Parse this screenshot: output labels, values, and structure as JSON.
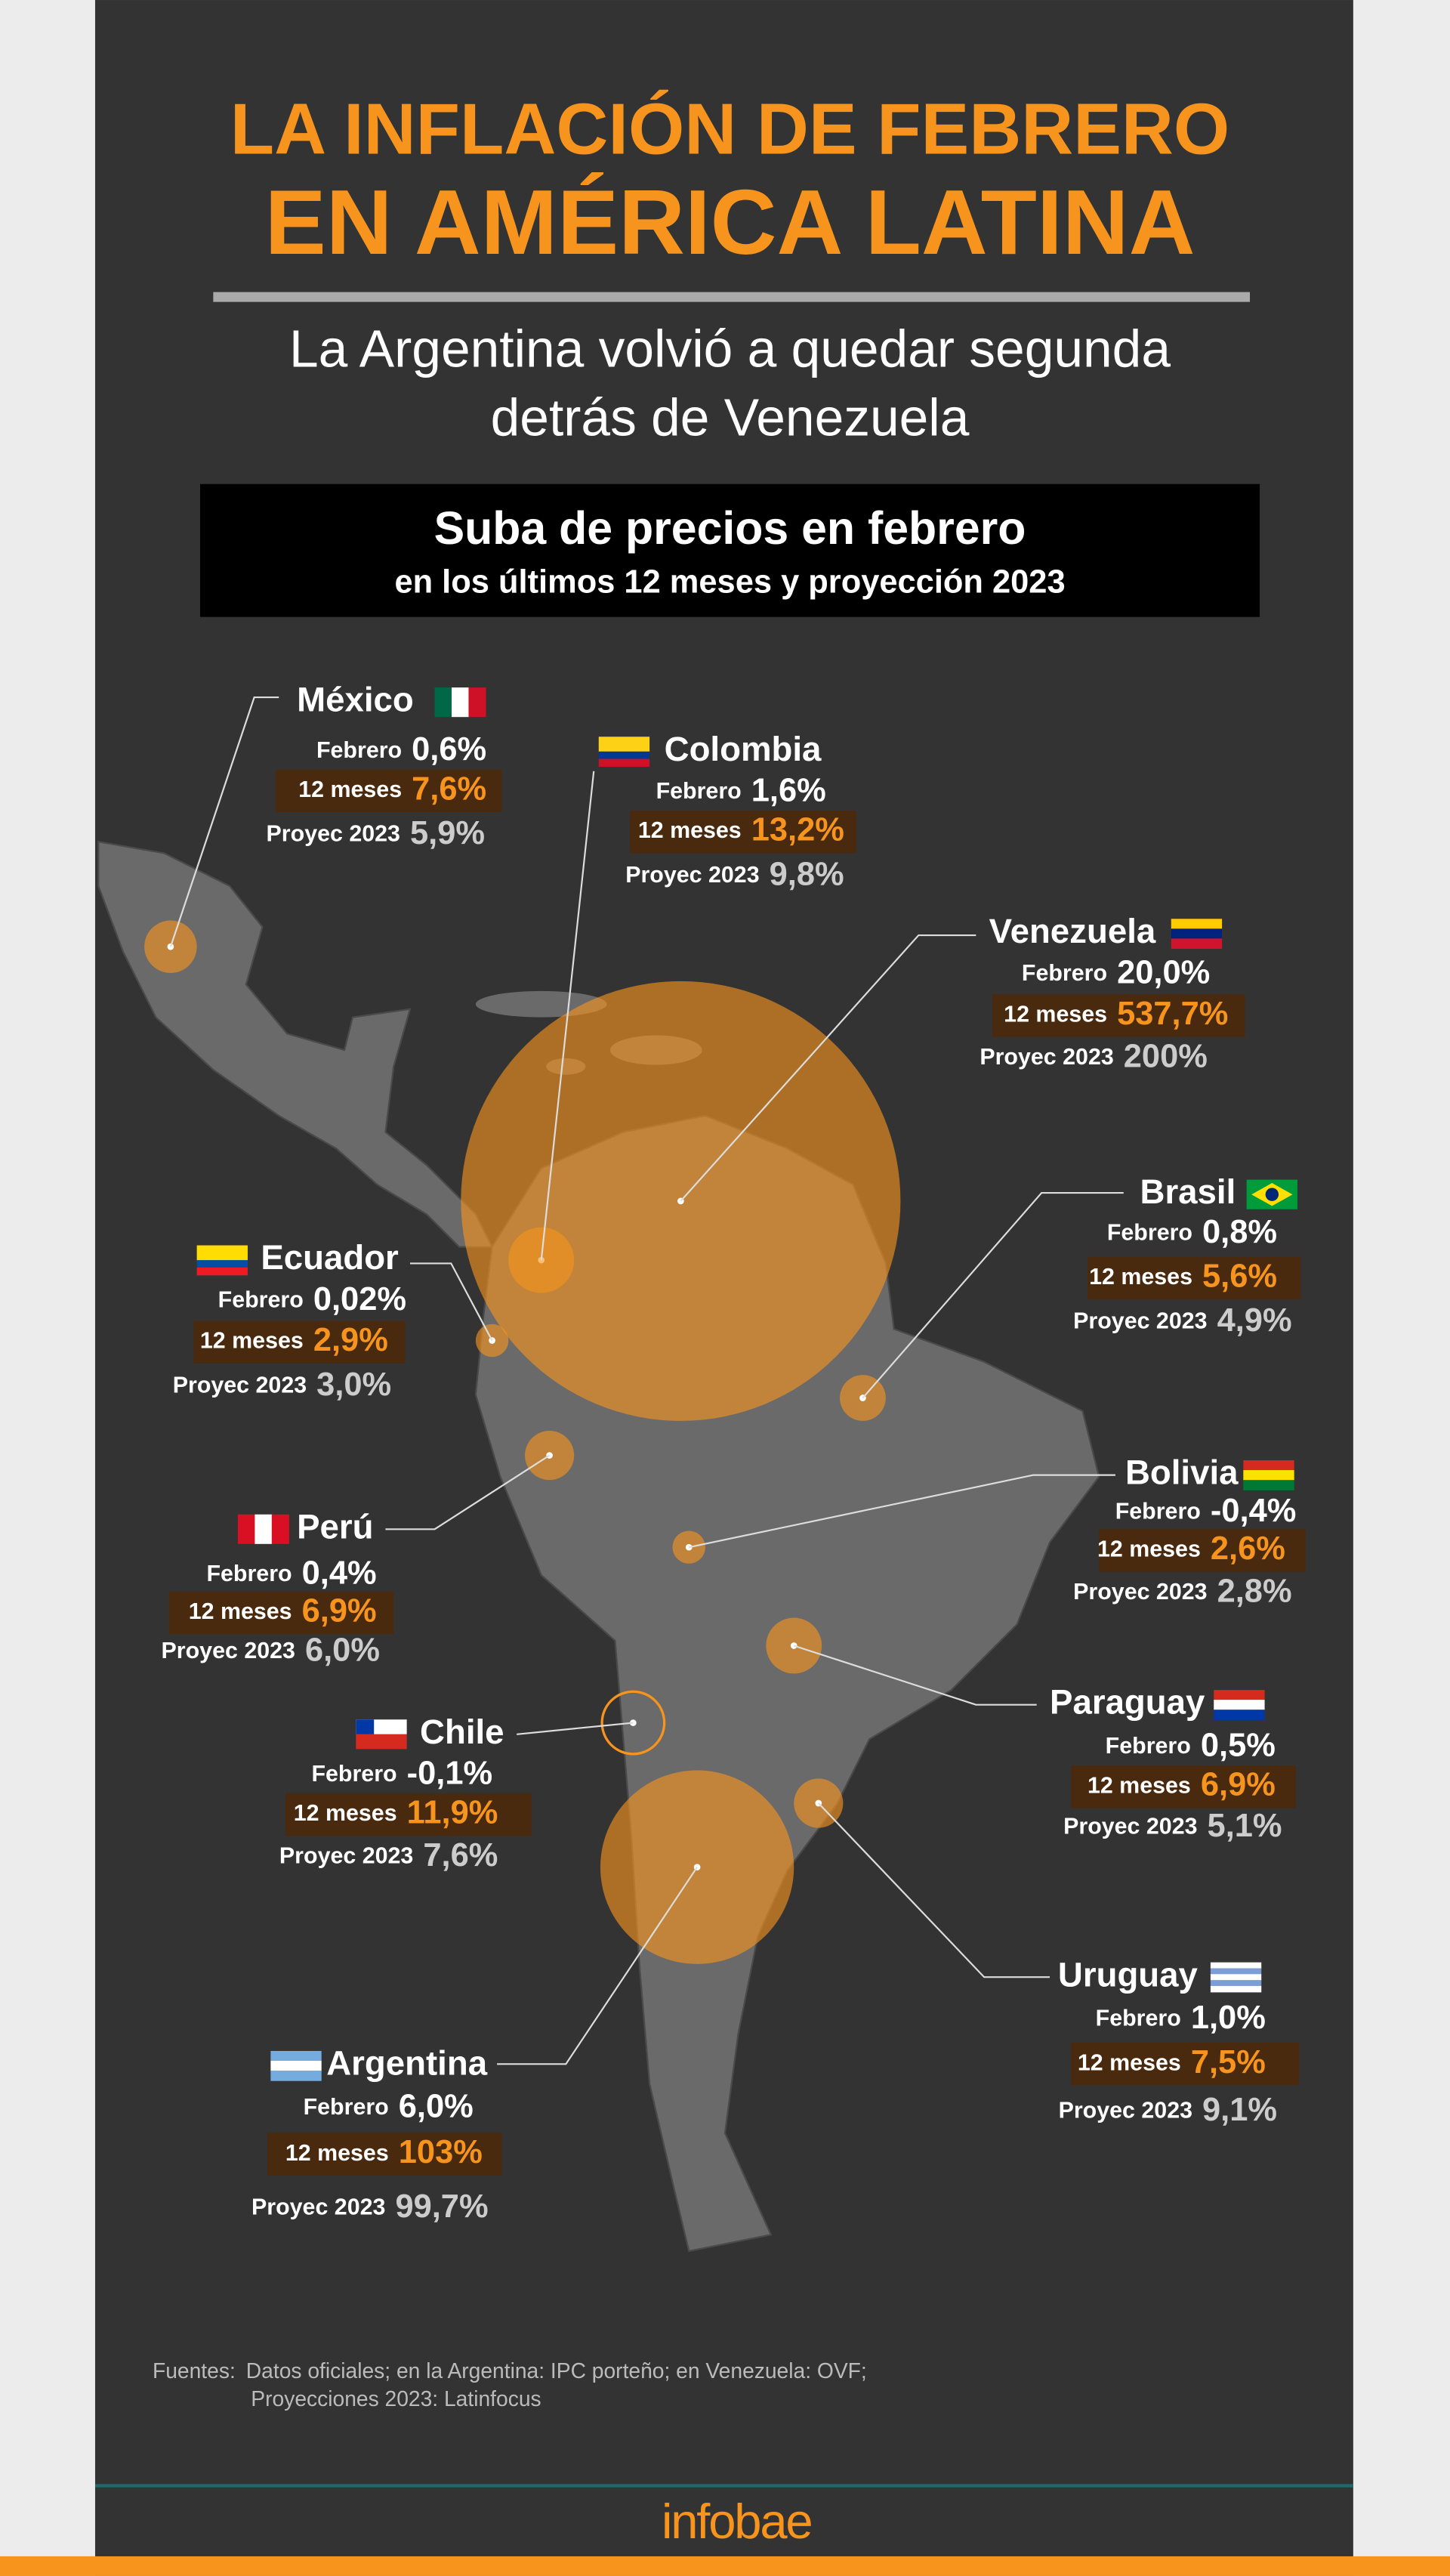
{
  "title": [
    "LA INFLACIÓN DE FEBRERO",
    "EN AMÉRICA LATINA"
  ],
  "subtitle": [
    "La Argentina volvió a quedar segunda",
    "detrás de Venezuela"
  ],
  "box": {
    "title": "Suba de precios en febrero",
    "subtitle": "en los últimos 12 meses y proyección 2023"
  },
  "labels": {
    "febrero": "Febrero",
    "doce": "12 meses",
    "proyec": "Proyec 2023"
  },
  "countries": [
    {
      "name": "México",
      "febrero": "0,6%",
      "doce": "7,6%",
      "proyec": "5,9%"
    },
    {
      "name": "Colombia",
      "febrero": "1,6%",
      "doce": "13,2%",
      "proyec": "9,8%"
    },
    {
      "name": "Venezuela",
      "febrero": "20,0%",
      "doce": "537,7%",
      "proyec": "200%"
    },
    {
      "name": "Brasil",
      "febrero": "0,8%",
      "doce": "5,6%",
      "proyec": "4,9%"
    },
    {
      "name": "Ecuador",
      "febrero": "0,02%",
      "doce": "2,9%",
      "proyec": "3,0%"
    },
    {
      "name": "Bolivia",
      "febrero": "-0,4%",
      "doce": "2,6%",
      "proyec": "2,8%"
    },
    {
      "name": "Perú",
      "febrero": "0,4%",
      "doce": "6,9%",
      "proyec": "6,0%"
    },
    {
      "name": "Paraguay",
      "febrero": "0,5%",
      "doce": "6,9%",
      "proyec": "5,1%"
    },
    {
      "name": "Chile",
      "febrero": "-0,1%",
      "doce": "11,9%",
      "proyec": "7,6%"
    },
    {
      "name": "Uruguay",
      "febrero": "1,0%",
      "doce": "7,5%",
      "proyec": "9,1%"
    },
    {
      "name": "Argentina",
      "febrero": "6,0%",
      "doce": "103%",
      "proyec": "99,7%"
    }
  ],
  "sources": {
    "label": "Fuentes:",
    "lines": [
      "Datos oficiales; en la Argentina: IPC porteño; en Venezuela: OVF;",
      "Proyecciones 2023: Latinfocus"
    ]
  },
  "brand": "infobae"
}
